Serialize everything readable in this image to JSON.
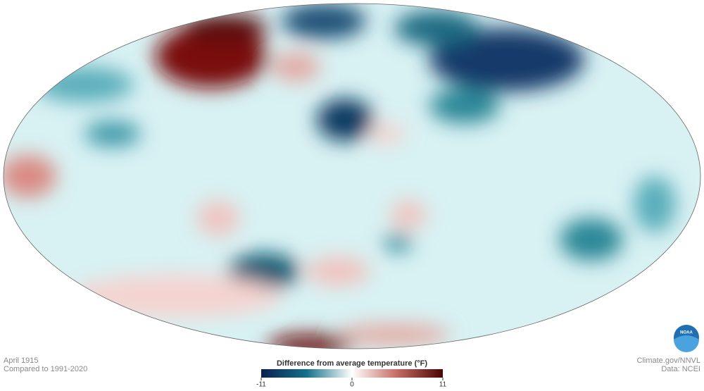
{
  "header": {
    "date": "April 1915",
    "baseline": "Compared to 1991-2020"
  },
  "credits": {
    "source": "Climate.gov/NNVL",
    "data": "Data: NCEI",
    "logo": "NOAA"
  },
  "legend": {
    "title": "Difference from average temperature (°F)",
    "ticks": [
      -11,
      0,
      11
    ]
  }
}
